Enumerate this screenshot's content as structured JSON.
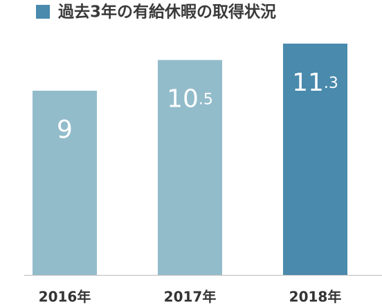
{
  "chart_data": {
    "type": "bar",
    "title": "過去3年の有給休暇の取得状況",
    "categories": [
      "2016年",
      "2017年",
      "2018年"
    ],
    "values": [
      9,
      10.5,
      11.3
    ],
    "colors": [
      "#93bccb",
      "#93bccb",
      "#4a8aad"
    ],
    "title_marker_color": "#4a8aad"
  }
}
